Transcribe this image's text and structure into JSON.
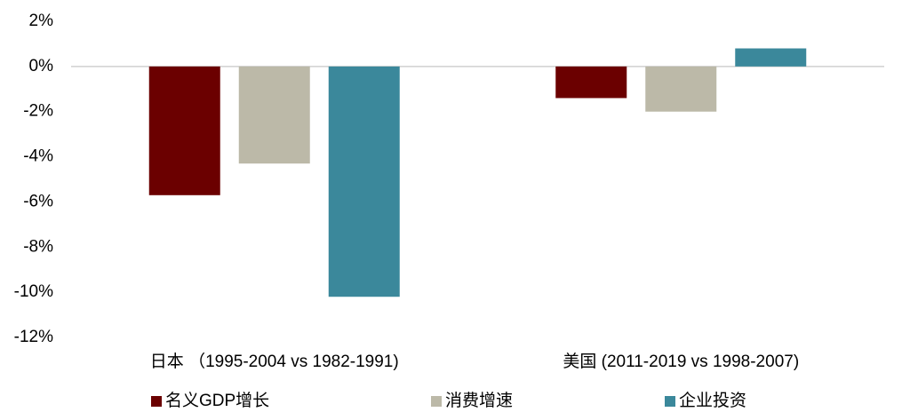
{
  "chart_data": {
    "type": "bar",
    "categories": [
      "日本 （1995-2004 vs 1982-1991)",
      "美国 (2011-2019 vs 1998-2007)"
    ],
    "series": [
      {
        "name": "名义GDP增长",
        "color": "#6b0000",
        "values": [
          -5.7,
          -1.4
        ]
      },
      {
        "name": "消费增速",
        "color": "#bcb9a8",
        "values": [
          -4.3,
          -2.0
        ]
      },
      {
        "name": "企业投资",
        "color": "#3b889b",
        "values": [
          -10.2,
          0.8
        ]
      }
    ],
    "ylim": [
      -12,
      2
    ],
    "yticks": [
      {
        "value": -12,
        "label": "-12%"
      },
      {
        "value": -10,
        "label": "-10%"
      },
      {
        "value": -8,
        "label": "-8%"
      },
      {
        "value": -6,
        "label": "-6%"
      },
      {
        "value": -4,
        "label": "-4%"
      },
      {
        "value": -2,
        "label": "-2%"
      },
      {
        "value": 0,
        "label": "0%"
      },
      {
        "value": 2,
        "label": "2%"
      }
    ],
    "legend": "bottom"
  }
}
